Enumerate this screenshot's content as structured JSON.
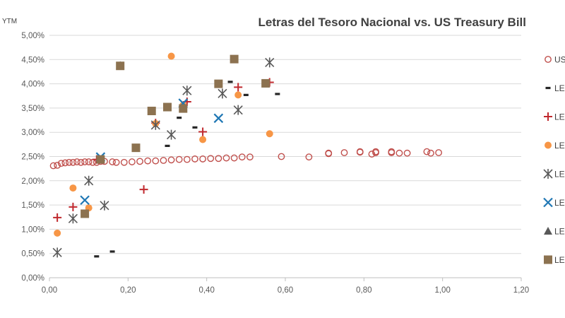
{
  "chart_data": {
    "type": "scatter",
    "title": "Letras del Tesoro Nacional vs. US Treasury Bill",
    "xlabel": "",
    "ylabel": "YTM",
    "xlim": [
      0,
      1.2
    ],
    "ylim": [
      0,
      5
    ],
    "x_ticks": [
      "0,00",
      "0,20",
      "0,40",
      "0,60",
      "0,80",
      "1,00",
      "1,20"
    ],
    "y_ticks": [
      "0,00%",
      "0,50%",
      "1,00%",
      "1,50%",
      "2,00%",
      "2,50%",
      "3,00%",
      "3,50%",
      "4,00%",
      "4,50%",
      "5,00%"
    ],
    "grid": "horizontal",
    "legend_position": "right",
    "series": [
      {
        "name": "US",
        "marker": "open-circle",
        "color": "#C0504D",
        "points": [
          [
            0.01,
            2.31
          ],
          [
            0.02,
            2.32
          ],
          [
            0.03,
            2.36
          ],
          [
            0.04,
            2.37
          ],
          [
            0.05,
            2.38
          ],
          [
            0.06,
            2.38
          ],
          [
            0.07,
            2.39
          ],
          [
            0.08,
            2.38
          ],
          [
            0.09,
            2.39
          ],
          [
            0.1,
            2.39
          ],
          [
            0.11,
            2.38
          ],
          [
            0.12,
            2.38
          ],
          [
            0.13,
            2.4
          ],
          [
            0.14,
            2.4
          ],
          [
            0.16,
            2.39
          ],
          [
            0.17,
            2.38
          ],
          [
            0.19,
            2.38
          ],
          [
            0.21,
            2.39
          ],
          [
            0.23,
            2.4
          ],
          [
            0.25,
            2.41
          ],
          [
            0.27,
            2.41
          ],
          [
            0.29,
            2.42
          ],
          [
            0.31,
            2.43
          ],
          [
            0.33,
            2.44
          ],
          [
            0.35,
            2.44
          ],
          [
            0.37,
            2.45
          ],
          [
            0.39,
            2.45
          ],
          [
            0.41,
            2.46
          ],
          [
            0.43,
            2.46
          ],
          [
            0.45,
            2.47
          ],
          [
            0.47,
            2.47
          ],
          [
            0.49,
            2.49
          ],
          [
            0.51,
            2.49
          ],
          [
            0.59,
            2.5
          ],
          [
            0.66,
            2.49
          ],
          [
            0.71,
            2.56
          ],
          [
            0.71,
            2.57
          ],
          [
            0.75,
            2.58
          ],
          [
            0.79,
            2.59
          ],
          [
            0.79,
            2.6
          ],
          [
            0.82,
            2.55
          ],
          [
            0.83,
            2.58
          ],
          [
            0.83,
            2.6
          ],
          [
            0.87,
            2.6
          ],
          [
            0.87,
            2.58
          ],
          [
            0.89,
            2.57
          ],
          [
            0.91,
            2.57
          ],
          [
            0.96,
            2.6
          ],
          [
            0.97,
            2.57
          ],
          [
            0.99,
            2.58
          ]
        ]
      },
      {
        "name": "LE",
        "marker": "dash",
        "color": "#262626",
        "points": [
          [
            0.12,
            0.44
          ],
          [
            0.16,
            0.54
          ],
          [
            0.3,
            2.72
          ],
          [
            0.33,
            3.3
          ],
          [
            0.37,
            3.1
          ],
          [
            0.46,
            4.04
          ],
          [
            0.5,
            3.77
          ],
          [
            0.58,
            3.79
          ]
        ]
      },
      {
        "name": "LE",
        "marker": "plus",
        "color": "#C0282D",
        "points": [
          [
            0.02,
            1.24
          ],
          [
            0.06,
            1.46
          ],
          [
            0.12,
            2.44
          ],
          [
            0.24,
            1.82
          ],
          [
            0.27,
            3.19
          ],
          [
            0.35,
            3.63
          ],
          [
            0.39,
            3.01
          ],
          [
            0.48,
            3.93
          ],
          [
            0.56,
            4.03
          ]
        ]
      },
      {
        "name": "LE",
        "marker": "dot",
        "color": "#F79646",
        "points": [
          [
            0.02,
            0.92
          ],
          [
            0.06,
            1.85
          ],
          [
            0.1,
            1.44
          ],
          [
            0.27,
            3.18
          ],
          [
            0.31,
            4.57
          ],
          [
            0.34,
            3.56
          ],
          [
            0.39,
            2.85
          ],
          [
            0.48,
            3.77
          ],
          [
            0.56,
            2.97
          ]
        ]
      },
      {
        "name": "LE",
        "marker": "asterisk",
        "color": "#595959",
        "points": [
          [
            0.02,
            0.52
          ],
          [
            0.06,
            1.22
          ],
          [
            0.1,
            2.0
          ],
          [
            0.14,
            1.49
          ],
          [
            0.27,
            3.15
          ],
          [
            0.31,
            2.95
          ],
          [
            0.35,
            3.86
          ],
          [
            0.44,
            3.8
          ],
          [
            0.48,
            3.46
          ],
          [
            0.56,
            4.44
          ]
        ]
      },
      {
        "name": "LE",
        "marker": "x",
        "color": "#1F77B4",
        "points": [
          [
            0.09,
            1.6
          ],
          [
            0.13,
            2.49
          ],
          [
            0.34,
            3.6
          ],
          [
            0.43,
            3.29
          ]
        ]
      },
      {
        "name": "LE",
        "marker": "triangle",
        "color": "#595959",
        "points": [
          [
            0.18,
            4.38
          ]
        ]
      },
      {
        "name": "LE",
        "marker": "square",
        "color": "#8C7250",
        "points": [
          [
            0.09,
            1.32
          ],
          [
            0.13,
            2.44
          ],
          [
            0.18,
            4.37
          ],
          [
            0.22,
            2.68
          ],
          [
            0.26,
            3.44
          ],
          [
            0.3,
            3.52
          ],
          [
            0.34,
            3.49
          ],
          [
            0.43,
            4.0
          ],
          [
            0.47,
            4.51
          ],
          [
            0.55,
            4.01
          ]
        ]
      }
    ]
  }
}
